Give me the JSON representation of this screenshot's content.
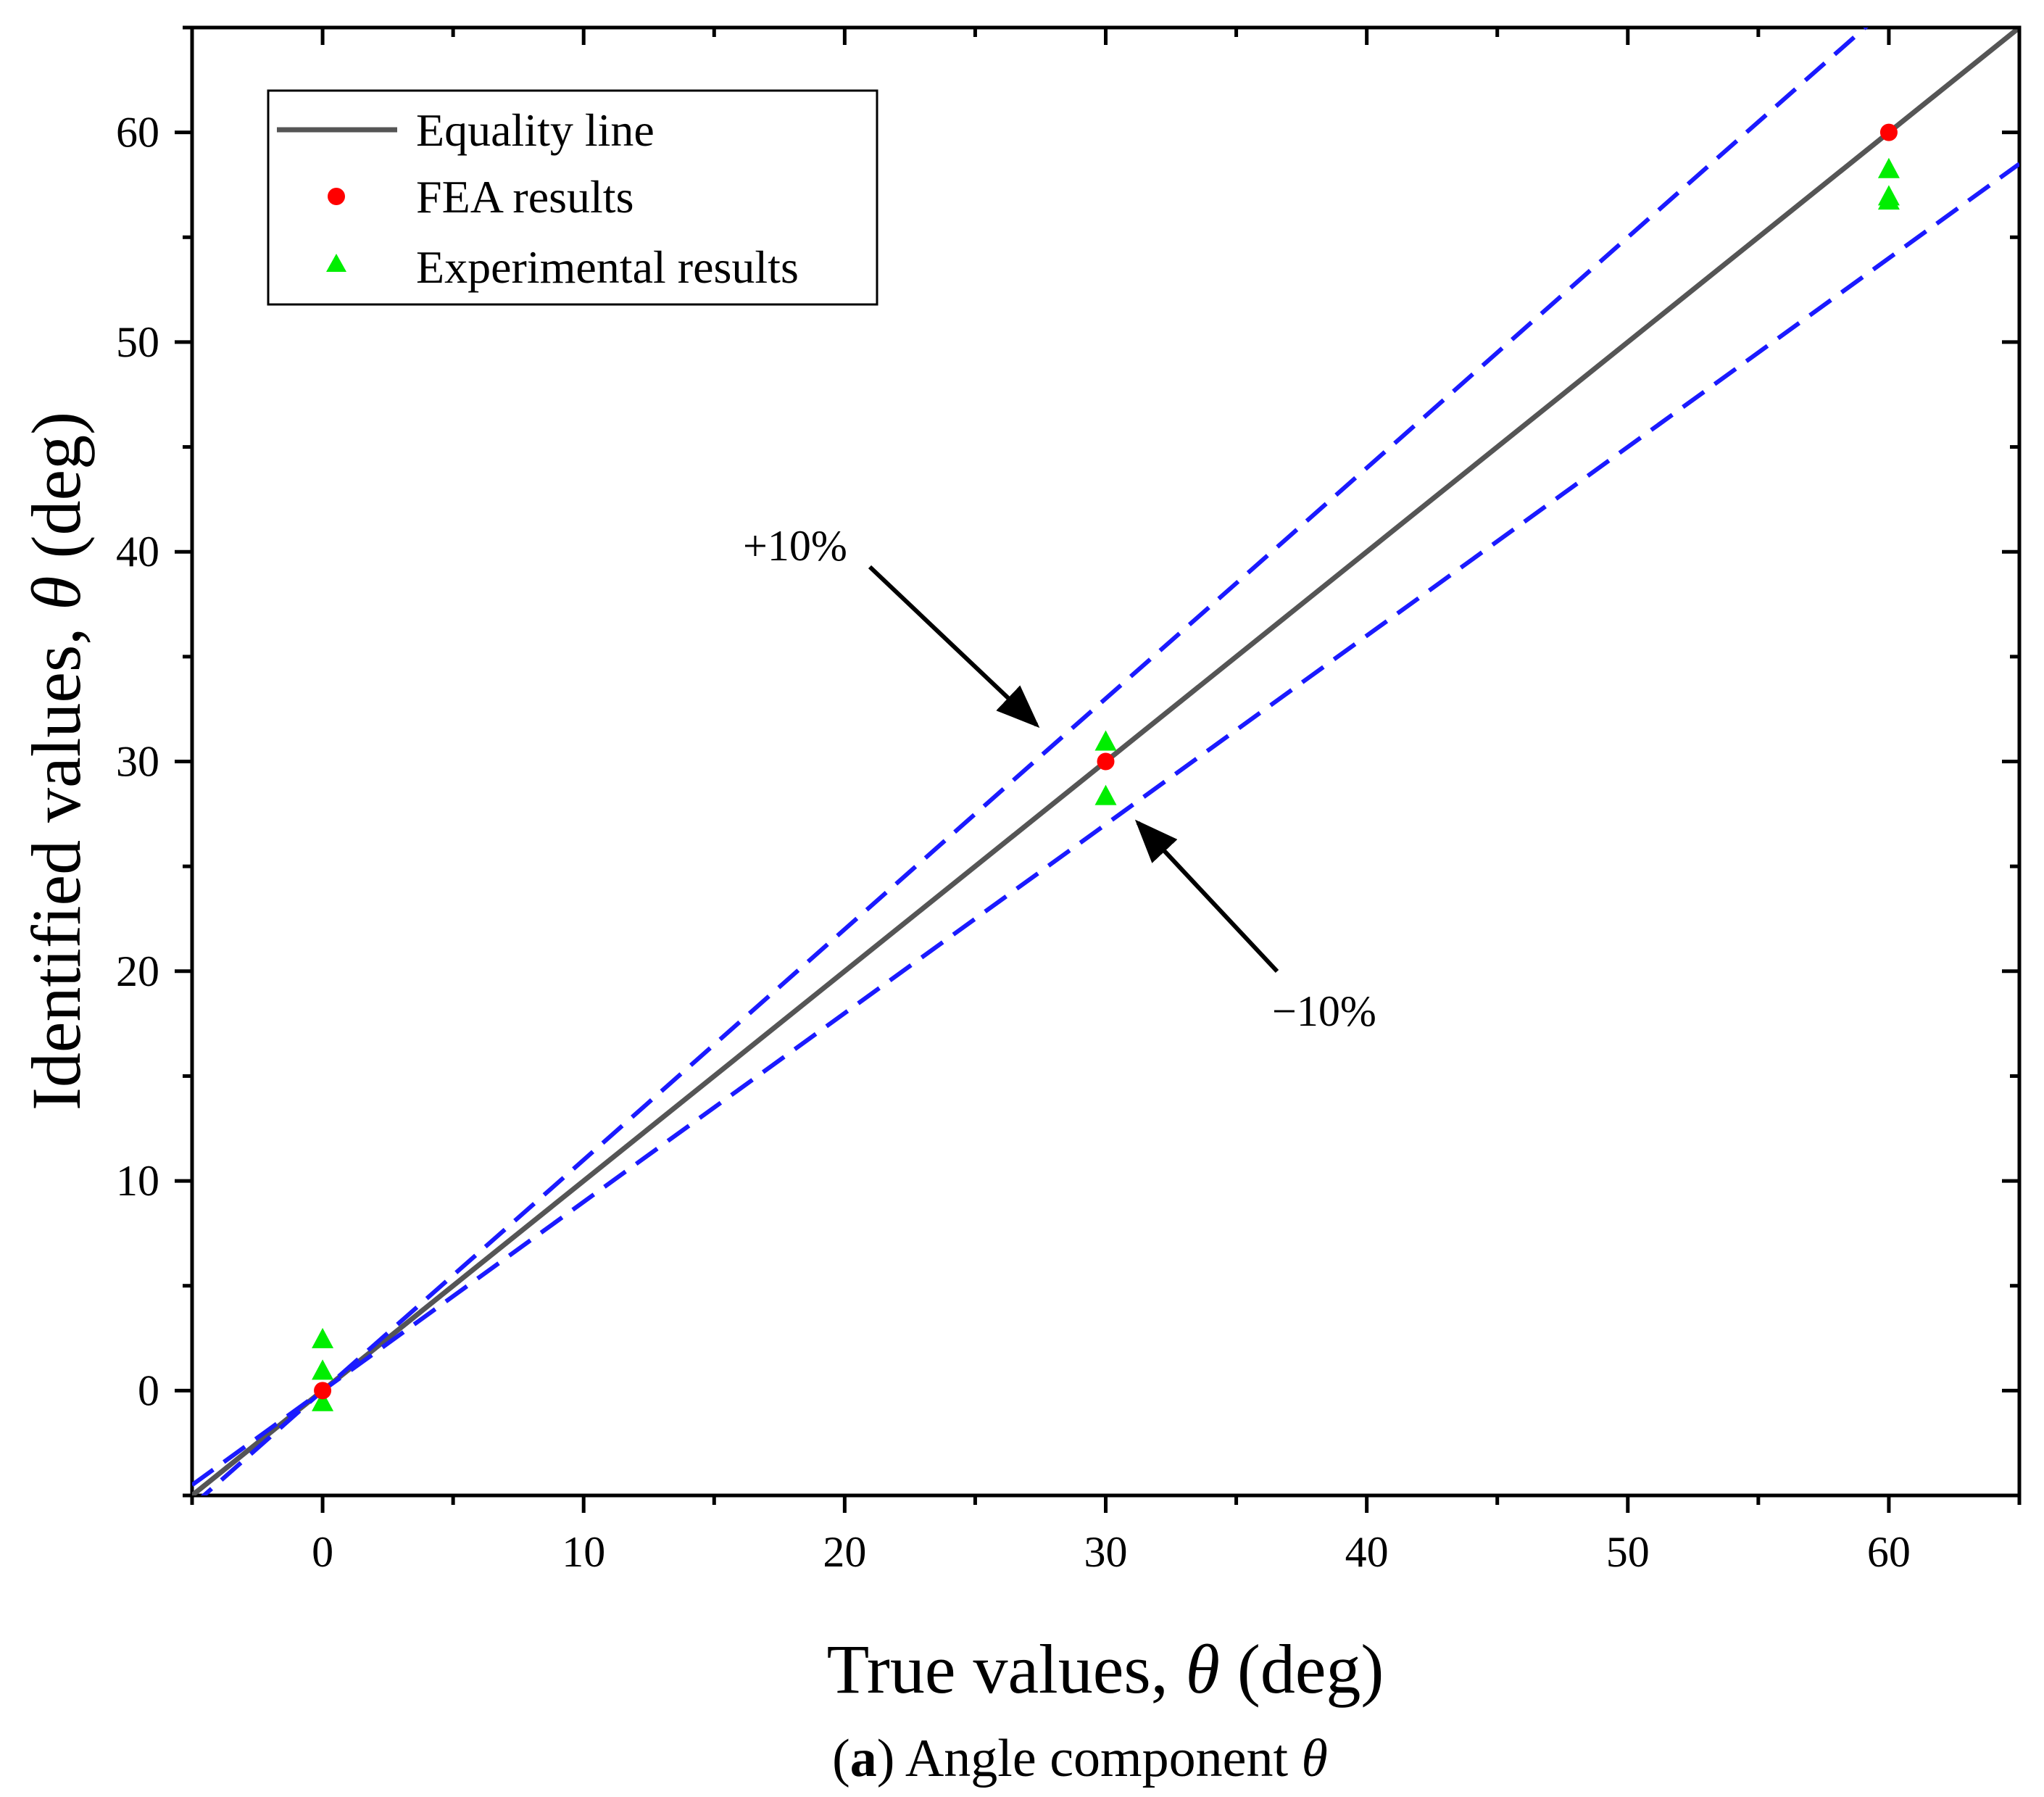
{
  "chart_data": {
    "type": "scatter",
    "title": "",
    "xlabel": {
      "prefix": "True values, ",
      "symbol": "θ",
      "suffix": " (deg)"
    },
    "ylabel": {
      "prefix": "Identified values, ",
      "symbol": "θ",
      "suffix": " (deg)"
    },
    "xlim": [
      -5,
      65
    ],
    "ylim": [
      -5,
      65
    ],
    "x_ticks": [
      0,
      10,
      20,
      30,
      40,
      50,
      60
    ],
    "y_ticks": [
      0,
      10,
      20,
      30,
      40,
      50,
      60
    ],
    "minor_tick_step": 5,
    "grid": false,
    "legend_position": "top-left",
    "series": [
      {
        "name": "Equality line",
        "kind": "line",
        "slope": 1.0,
        "color": "#555555",
        "dashed": false
      },
      {
        "name": "+10% bound",
        "kind": "line",
        "slope": 1.1,
        "color": "#1a1aff",
        "dashed": true
      },
      {
        "name": "−10% bound",
        "kind": "line",
        "slope": 0.9,
        "color": "#1a1aff",
        "dashed": true
      },
      {
        "name": "FEA results",
        "kind": "scatter",
        "marker": "circle",
        "color": "#ff0000",
        "points": [
          [
            0,
            0
          ],
          [
            30,
            30
          ],
          [
            60,
            60
          ]
        ]
      },
      {
        "name": "Experimental results",
        "kind": "scatter",
        "marker": "triangle",
        "color": "#00ee00",
        "points": [
          [
            0,
            2.4
          ],
          [
            0,
            0.9
          ],
          [
            0,
            -0.6
          ],
          [
            30,
            30.9
          ],
          [
            30,
            28.3
          ],
          [
            60,
            58.2
          ],
          [
            60,
            56.9
          ],
          [
            60,
            56.7
          ]
        ]
      }
    ],
    "legend": [
      "Equality line",
      "FEA results",
      "Experimental results"
    ],
    "annotations": [
      {
        "text": "+10%",
        "points_to": [
          27.5,
          30.6
        ]
      },
      {
        "text": "−10%",
        "points_to": [
          31.0,
          27.4
        ]
      }
    ],
    "caption": {
      "label": "a",
      "text": " Angle component ",
      "symbol": "θ"
    }
  }
}
